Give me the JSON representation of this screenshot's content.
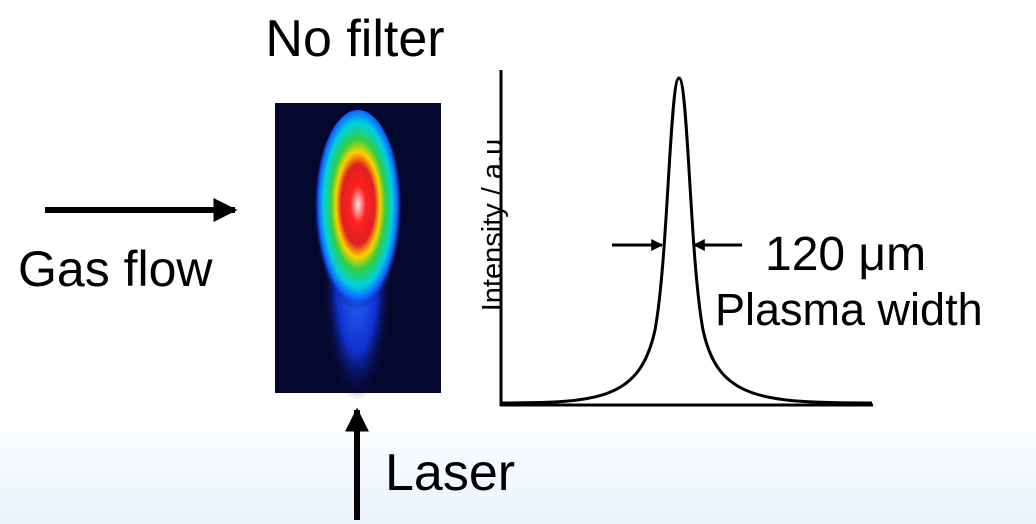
{
  "title": "No filter",
  "labels": {
    "gas_flow": "Gas flow",
    "laser": "Laser",
    "y_axis": "Intensity / a.u",
    "width_value": "120 μm",
    "width_label": "Plasma width"
  }
}
